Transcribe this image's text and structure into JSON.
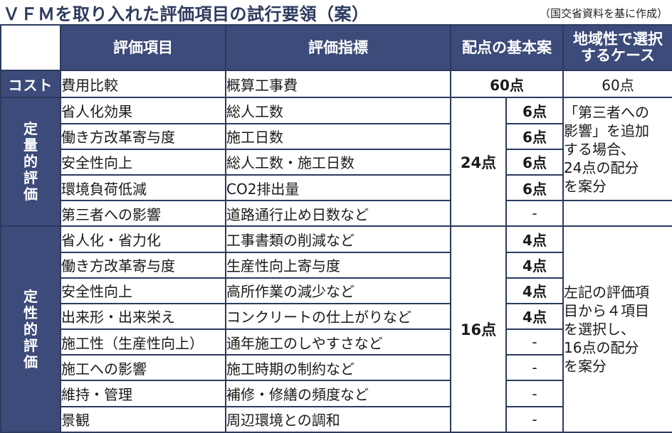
{
  "title": "ＶＦＭを取り入れた評価項目の試行要領（案）",
  "source": "（国交省資料を基に作成）",
  "headers": {
    "item": "評価項目",
    "indicator": "評価指標",
    "basic_points": "配点の基本案",
    "regional_line1": "地域性で選択",
    "regional_line2": "するケース"
  },
  "cost": {
    "category": "コスト",
    "item": "費用比較",
    "indicator": "概算工事費",
    "basic_points": "60点",
    "regional_points": "60点"
  },
  "quantitative": {
    "category": [
      "定",
      "量",
      "的",
      "評",
      "価"
    ],
    "group_points": "24点",
    "rows": [
      {
        "item": "省人化効果",
        "indicator": "総人工数",
        "points": "6点"
      },
      {
        "item": "働き方改革寄与度",
        "indicator": "施工日数",
        "points": "6点"
      },
      {
        "item": "安全性向上",
        "indicator": "総人工数・施工日数",
        "points": "6点"
      },
      {
        "item": "環境負荷低減",
        "indicator": "CO2排出量",
        "points": "6点"
      },
      {
        "item": "第三者への影響",
        "indicator": "道路通行止め日数など",
        "points": "-"
      }
    ],
    "regional_note": [
      "「第三者への",
      "影響」を追加",
      "する場合、",
      "24点の配分",
      "を案分"
    ]
  },
  "qualitative": {
    "category": [
      "定",
      "性",
      "的",
      "評",
      "価"
    ],
    "group_points": "16点",
    "rows": [
      {
        "item": "省人化・省力化",
        "indicator": "工事書類の削減など",
        "points": "4点"
      },
      {
        "item": "働き方改革寄与度",
        "indicator": "生産性向上寄与度",
        "points": "4点"
      },
      {
        "item": "安全性向上",
        "indicator": "高所作業の減少など",
        "points": "4点"
      },
      {
        "item": "出来形・出来栄え",
        "indicator": "コンクリートの仕上がりなど",
        "points": "4点"
      },
      {
        "item": "施工性（生産性向上）",
        "indicator": "通年施工のしやすさなど",
        "points": "-"
      },
      {
        "item": "施工への影響",
        "indicator": "施工時期の制約など",
        "points": "-"
      },
      {
        "item": "維持・管理",
        "indicator": "補修・修繕の頻度など",
        "points": "-"
      },
      {
        "item": "景観",
        "indicator": "周辺環境との調和",
        "points": "-"
      }
    ],
    "regional_note": [
      "左記の評価項",
      "目から４項目",
      "を選択し、",
      "16点の配分",
      "を案分"
    ]
  }
}
